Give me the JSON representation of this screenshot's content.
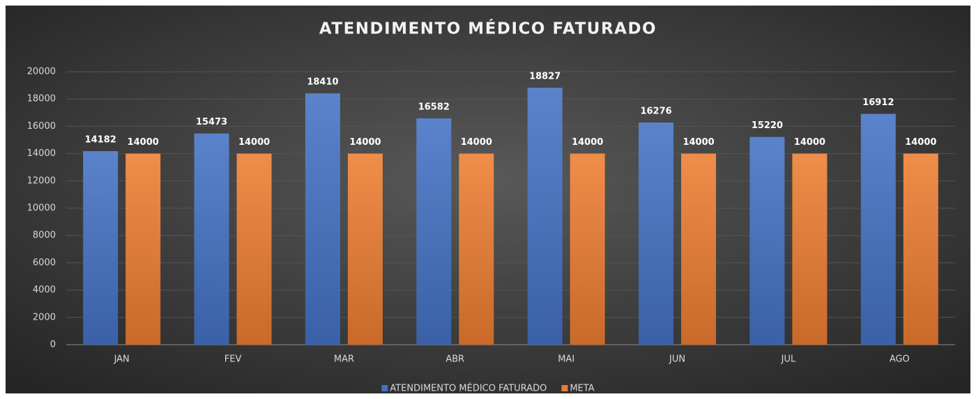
{
  "chart_data": {
    "type": "bar",
    "title": "ATENDIMENTO MÉDICO FATURADO",
    "categories": [
      "JAN",
      "FEV",
      "MAR",
      "ABR",
      "MAI",
      "JUN",
      "JUL",
      "AGO"
    ],
    "series": [
      {
        "name": "ATENDIMENTO MÉDICO FATURADO",
        "color": "#4472c4",
        "values": [
          14182,
          15473,
          18410,
          16582,
          18827,
          16276,
          15220,
          16912
        ]
      },
      {
        "name": "META",
        "color": "#ed7d31",
        "values": [
          14000,
          14000,
          14000,
          14000,
          14000,
          14000,
          14000,
          14000
        ]
      }
    ],
    "ylim": [
      0,
      20000
    ],
    "yticks": [
      0,
      2000,
      4000,
      6000,
      8000,
      10000,
      12000,
      14000,
      16000,
      18000,
      20000
    ],
    "grid": true,
    "legend": "bottom"
  }
}
